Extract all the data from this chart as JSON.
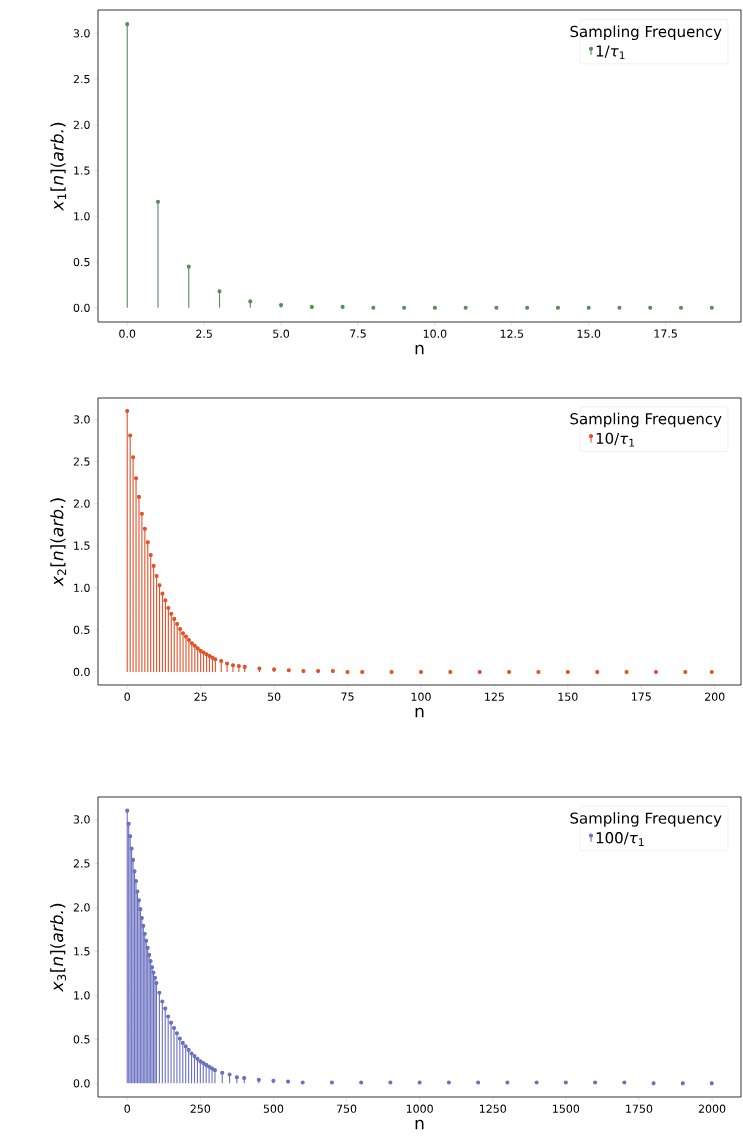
{
  "chart_data": [
    {
      "type": "lollipop",
      "xlabel": "n",
      "ylabel": "*x*$_{1}$[*n*](*arb.*)",
      "legend_title": "Sampling Frequency",
      "legend": "top right",
      "marker": "circle",
      "xlim": [
        -0.95,
        19.95
      ],
      "ylim": [
        -0.155,
        3.255
      ],
      "xticks": [
        {
          "value": 0,
          "label": "0.0"
        },
        {
          "value": 2.5,
          "label": "2.5"
        },
        {
          "value": 5,
          "label": "5.0"
        },
        {
          "value": 7.5,
          "label": "7.5"
        },
        {
          "value": 10,
          "label": "10.0"
        },
        {
          "value": 12.5,
          "label": "12.5"
        },
        {
          "value": 15,
          "label": "15.0"
        },
        {
          "value": 17.5,
          "label": "17.5"
        }
      ],
      "yticks": [
        {
          "value": 0,
          "label": "0.0"
        },
        {
          "value": 0.5,
          "label": "0.5"
        },
        {
          "value": 1,
          "label": "1.0"
        },
        {
          "value": 1.5,
          "label": "1.5"
        },
        {
          "value": 2,
          "label": "2.0"
        },
        {
          "value": 2.5,
          "label": "2.5"
        },
        {
          "value": 3,
          "label": "3.0"
        }
      ],
      "series": [
        {
          "name": "1/*τ*$_{1}$",
          "color": "#5b8c5a",
          "x": [
            0,
            1,
            2,
            3,
            4,
            5,
            6,
            7,
            8,
            9,
            10,
            11,
            12,
            13,
            14,
            15,
            16,
            17,
            18,
            19
          ],
          "values": [
            3.1,
            1.16,
            0.45,
            0.18,
            0.07,
            0.03,
            0.01,
            0.01,
            0,
            0,
            0,
            0,
            0,
            0,
            0,
            0,
            0,
            0,
            0,
            0
          ]
        }
      ]
    },
    {
      "type": "lollipop",
      "xlabel": "n",
      "ylabel": "*x*$_{2}$[*n*](*arb.*)",
      "legend_title": "Sampling Frequency",
      "legend": "top right",
      "marker": "circle",
      "xlim": [
        -9.95,
        208.95
      ],
      "ylim": [
        -0.155,
        3.255
      ],
      "xticks": [
        0,
        25,
        50,
        75,
        100,
        125,
        150,
        175,
        200
      ],
      "yticks": [
        {
          "value": 0,
          "label": "0.0"
        },
        {
          "value": 0.5,
          "label": "0.5"
        },
        {
          "value": 1,
          "label": "1.0"
        },
        {
          "value": 1.5,
          "label": "1.5"
        },
        {
          "value": 2,
          "label": "2.0"
        },
        {
          "value": 2.5,
          "label": "2.5"
        },
        {
          "value": 3,
          "label": "3.0"
        }
      ],
      "series": [
        {
          "name": "10/*τ*$_{1}$",
          "color": "#e0522a",
          "x": [
            0,
            1,
            2,
            3,
            4,
            5,
            6,
            7,
            8,
            9,
            10,
            11,
            12,
            13,
            14,
            15,
            16,
            17,
            18,
            19,
            20,
            21,
            22,
            23,
            24,
            25,
            26,
            27,
            28,
            29,
            30,
            32,
            34,
            36,
            38,
            40,
            45,
            50,
            55,
            60,
            65,
            70,
            75,
            80,
            90,
            100,
            110,
            120,
            130,
            140,
            150,
            160,
            170,
            180,
            190,
            199
          ],
          "values": [
            3.1,
            2.81,
            2.55,
            2.3,
            2.08,
            1.88,
            1.7,
            1.54,
            1.39,
            1.26,
            1.14,
            1.03,
            0.93,
            0.85,
            0.76,
            0.69,
            0.63,
            0.57,
            0.51,
            0.46,
            0.42,
            0.38,
            0.34,
            0.31,
            0.28,
            0.25,
            0.23,
            0.21,
            0.19,
            0.17,
            0.15,
            0.13,
            0.1,
            0.08,
            0.07,
            0.06,
            0.04,
            0.03,
            0.02,
            0.01,
            0.01,
            0.01,
            0,
            0,
            0,
            0,
            0,
            0,
            0,
            0,
            0,
            0,
            0,
            0,
            0,
            0
          ]
        }
      ]
    },
    {
      "type": "lollipop",
      "xlabel": "n",
      "ylabel": "*x*$_{3}$[*n*](*arb.*)",
      "legend_title": "Sampling Frequency",
      "legend": "top right",
      "marker": "circle",
      "xlim": [
        -99.95,
        2098.95
      ],
      "ylim": [
        -0.155,
        3.255
      ],
      "xticks": [
        0,
        250,
        500,
        750,
        1000,
        1250,
        1500,
        1750,
        2000
      ],
      "yticks": [
        {
          "value": 0,
          "label": "0.0"
        },
        {
          "value": 0.5,
          "label": "0.5"
        },
        {
          "value": 1,
          "label": "1.0"
        },
        {
          "value": 1.5,
          "label": "1.5"
        },
        {
          "value": 2,
          "label": "2.0"
        },
        {
          "value": 2.5,
          "label": "2.5"
        },
        {
          "value": 3,
          "label": "3.0"
        }
      ],
      "series": [
        {
          "name": "100/*τ*$_{1}$",
          "color": "#6a70c0",
          "x": [
            0,
            5,
            10,
            15,
            20,
            25,
            30,
            35,
            40,
            45,
            50,
            55,
            60,
            65,
            70,
            75,
            80,
            85,
            90,
            95,
            100,
            110,
            120,
            130,
            140,
            150,
            160,
            170,
            180,
            190,
            200,
            210,
            220,
            230,
            240,
            250,
            260,
            270,
            280,
            290,
            300,
            325,
            350,
            375,
            400,
            450,
            500,
            550,
            600,
            700,
            800,
            900,
            1000,
            1100,
            1200,
            1300,
            1400,
            1500,
            1600,
            1700,
            1800,
            1900,
            1999
          ],
          "values": [
            3.1,
            2.95,
            2.81,
            2.67,
            2.54,
            2.41,
            2.3,
            2.18,
            2.08,
            1.98,
            1.88,
            1.79,
            1.7,
            1.62,
            1.54,
            1.46,
            1.39,
            1.32,
            1.26,
            1.2,
            1.14,
            1.03,
            0.93,
            0.85,
            0.76,
            0.69,
            0.63,
            0.57,
            0.51,
            0.46,
            0.42,
            0.38,
            0.34,
            0.31,
            0.28,
            0.25,
            0.23,
            0.21,
            0.19,
            0.17,
            0.15,
            0.12,
            0.1,
            0.07,
            0.06,
            0.04,
            0.03,
            0.02,
            0.01,
            0.01,
            0.01,
            0.01,
            0.01,
            0.01,
            0.01,
            0.01,
            0.01,
            0.01,
            0.01,
            0.01,
            0,
            0,
            0
          ]
        }
      ]
    }
  ]
}
